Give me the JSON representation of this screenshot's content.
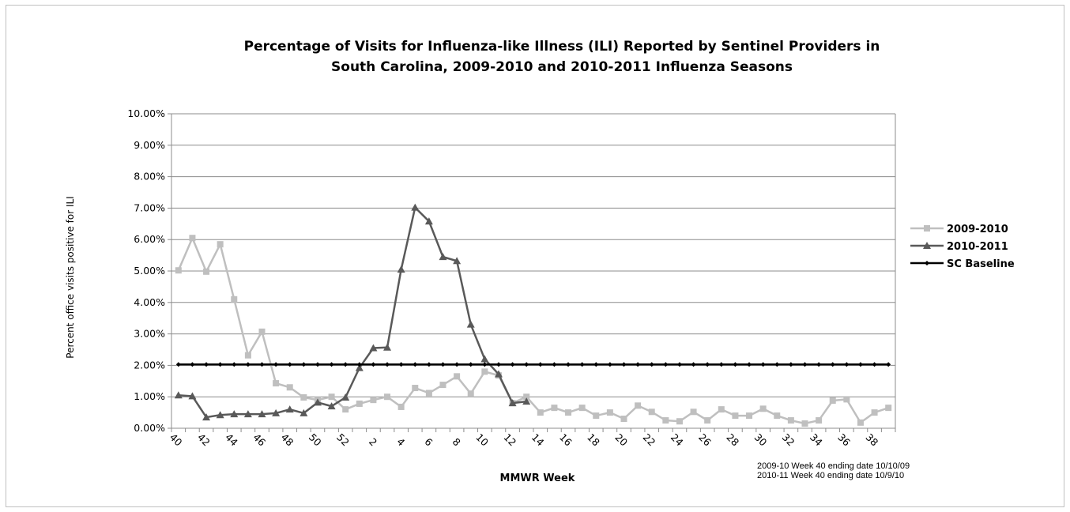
{
  "chart_data": {
    "type": "line",
    "title_line1": "Percentage of Visits for Influenza-like Illness (ILI) Reported by Sentinel Providers in",
    "title_line2": "South Carolina, 2009-2010 and 2010-2011 Influenza Seasons",
    "xlabel": "MMWR Week",
    "ylabel": "Percent office visits positive for ILI",
    "ylim": [
      0,
      10
    ],
    "y_ticks": [
      "0.00%",
      "1.00%",
      "2.00%",
      "3.00%",
      "4.00%",
      "5.00%",
      "6.00%",
      "7.00%",
      "8.00%",
      "9.00%",
      "10.00%"
    ],
    "weeks": [
      40,
      41,
      42,
      43,
      44,
      45,
      46,
      47,
      48,
      49,
      50,
      51,
      52,
      1,
      2,
      3,
      4,
      5,
      6,
      7,
      8,
      9,
      10,
      11,
      12,
      13,
      14,
      15,
      16,
      17,
      18,
      19,
      20,
      21,
      22,
      23,
      24,
      25,
      26,
      27,
      28,
      29,
      30,
      31,
      32,
      33,
      34,
      35,
      36,
      37,
      38,
      39
    ],
    "x_tick_labels": [
      "40",
      "42",
      "44",
      "46",
      "48",
      "50",
      "52",
      "2",
      "4",
      "6",
      "8",
      "10",
      "12",
      "14",
      "16",
      "18",
      "20",
      "22",
      "24",
      "26",
      "28",
      "30",
      "32",
      "34",
      "36",
      "38"
    ],
    "grid": "horizontal",
    "legend_position": "right",
    "series": [
      {
        "name": "2009-2010",
        "color": "#bfbfbf",
        "marker": "square",
        "values": [
          5.02,
          6.05,
          4.98,
          5.85,
          4.1,
          2.32,
          3.07,
          1.43,
          1.3,
          0.98,
          0.9,
          1.0,
          0.6,
          0.78,
          0.9,
          1.0,
          0.68,
          1.28,
          1.12,
          1.38,
          1.65,
          1.1,
          1.8,
          1.68,
          0.8,
          1.0,
          0.5,
          0.65,
          0.5,
          0.65,
          0.4,
          0.5,
          0.3,
          0.72,
          0.52,
          0.25,
          0.22,
          0.52,
          0.25,
          0.6,
          0.4,
          0.4,
          0.62,
          0.4,
          0.25,
          0.15,
          0.25,
          0.88,
          0.92,
          0.18,
          0.5,
          0.65
        ]
      },
      {
        "name": "2010-2011",
        "color": "#595959",
        "marker": "triangle",
        "values": [
          1.05,
          1.02,
          0.35,
          0.42,
          0.45,
          0.45,
          0.45,
          0.48,
          0.6,
          0.48,
          0.82,
          0.7,
          0.98,
          1.92,
          2.55,
          2.57,
          5.05,
          7.02,
          6.58,
          5.45,
          5.32,
          3.3,
          2.2,
          1.72,
          0.8,
          0.85
        ]
      },
      {
        "name": "SC Baseline",
        "color": "#000000",
        "marker": "diamond",
        "constant": 2.03
      }
    ],
    "footnote_lines": [
      "2009-10  Week 40  ending  date 10/10/09",
      "2010-11  Week 40  ending  date 10/9/10"
    ]
  }
}
